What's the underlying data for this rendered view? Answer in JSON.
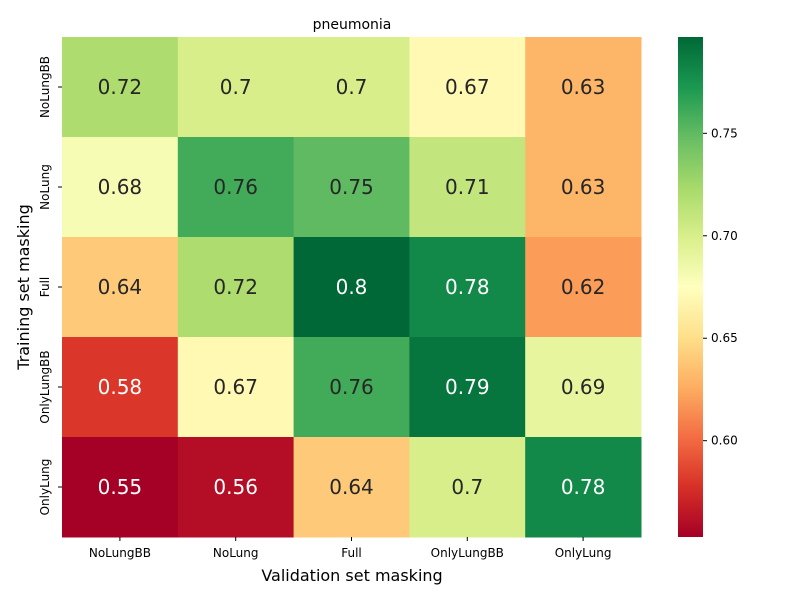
{
  "chart_data": {
    "type": "heatmap",
    "title": "pneumonia",
    "xlabel": "Validation set masking",
    "ylabel": "Training set masking",
    "x_categories": [
      "NoLungBB",
      "NoLung",
      "Full",
      "OnlyLungBB",
      "OnlyLung"
    ],
    "y_categories": [
      "NoLungBB",
      "NoLung",
      "Full",
      "OnlyLungBB",
      "OnlyLung"
    ],
    "values": [
      [
        0.72,
        0.7,
        0.7,
        0.67,
        0.63
      ],
      [
        0.68,
        0.76,
        0.75,
        0.71,
        0.63
      ],
      [
        0.64,
        0.72,
        0.8,
        0.78,
        0.62
      ],
      [
        0.58,
        0.67,
        0.76,
        0.79,
        0.69
      ],
      [
        0.55,
        0.56,
        0.64,
        0.7,
        0.78
      ]
    ],
    "value_labels": [
      [
        "0.72",
        "0.7",
        "0.7",
        "0.67",
        "0.63"
      ],
      [
        "0.68",
        "0.76",
        "0.75",
        "0.71",
        "0.63"
      ],
      [
        "0.64",
        "0.72",
        "0.8",
        "0.78",
        "0.62"
      ],
      [
        "0.58",
        "0.67",
        "0.76",
        "0.79",
        "0.69"
      ],
      [
        "0.55",
        "0.56",
        "0.64",
        "0.7",
        "0.78"
      ]
    ],
    "colormap": "RdYlGn",
    "color_range": [
      0.553,
      0.797
    ],
    "colorbar_ticks": [
      "0.60",
      "0.65",
      "0.70",
      "0.75"
    ],
    "colorbar_tick_values": [
      0.6,
      0.65,
      0.7,
      0.75
    ]
  }
}
